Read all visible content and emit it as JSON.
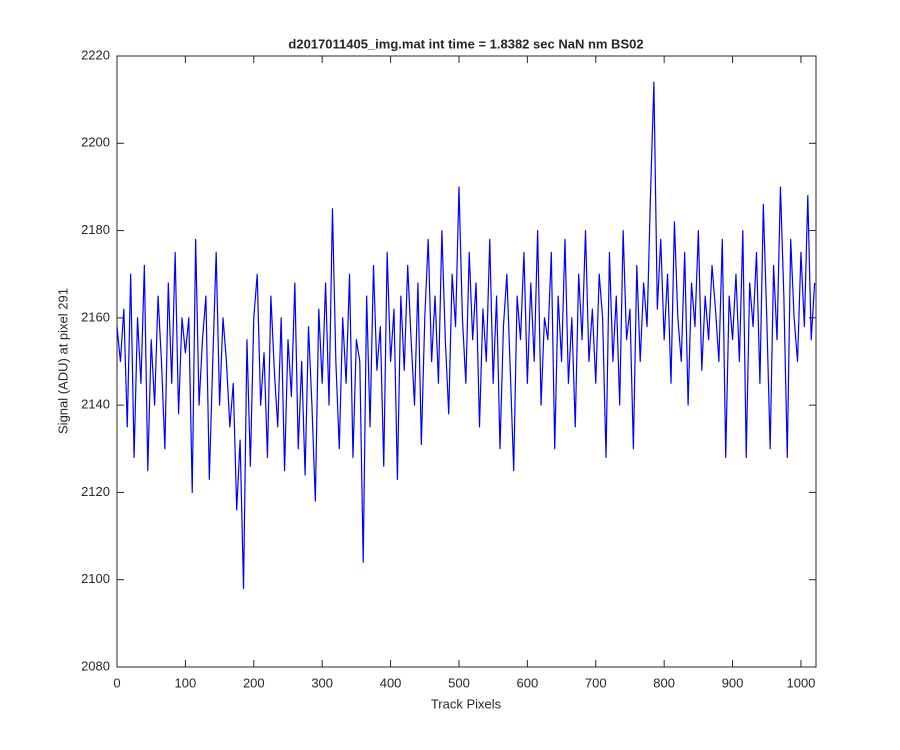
{
  "chart_data": {
    "type": "line",
    "title": "d2017011405_img.mat int time = 1.8382 sec  NaN nm BS02",
    "xlabel": "Track Pixels",
    "ylabel": "Signal (ADU) at pixel 291",
    "x": [
      0,
      5,
      10,
      15,
      20,
      25,
      30,
      35,
      40,
      45,
      50,
      55,
      60,
      65,
      70,
      75,
      80,
      85,
      90,
      95,
      100,
      105,
      110,
      115,
      120,
      125,
      130,
      135,
      140,
      145,
      150,
      155,
      160,
      165,
      170,
      175,
      180,
      185,
      190,
      195,
      200,
      205,
      210,
      215,
      220,
      225,
      230,
      235,
      240,
      245,
      250,
      255,
      260,
      265,
      270,
      275,
      280,
      285,
      290,
      295,
      300,
      305,
      310,
      315,
      320,
      325,
      330,
      335,
      340,
      345,
      350,
      355,
      360,
      365,
      370,
      375,
      380,
      385,
      390,
      395,
      400,
      405,
      410,
      415,
      420,
      425,
      430,
      435,
      440,
      445,
      450,
      455,
      460,
      465,
      470,
      475,
      480,
      485,
      490,
      495,
      500,
      505,
      510,
      515,
      520,
      525,
      530,
      535,
      540,
      545,
      550,
      555,
      560,
      565,
      570,
      575,
      580,
      585,
      590,
      595,
      600,
      605,
      610,
      615,
      620,
      625,
      630,
      635,
      640,
      645,
      650,
      655,
      660,
      665,
      670,
      675,
      680,
      685,
      690,
      695,
      700,
      705,
      710,
      715,
      720,
      725,
      730,
      735,
      740,
      745,
      750,
      755,
      760,
      765,
      770,
      775,
      780,
      785,
      790,
      795,
      800,
      805,
      810,
      815,
      820,
      825,
      830,
      835,
      840,
      845,
      850,
      855,
      860,
      865,
      870,
      875,
      880,
      885,
      890,
      895,
      900,
      905,
      910,
      915,
      920,
      925,
      930,
      935,
      940,
      945,
      950,
      955,
      960,
      965,
      970,
      975,
      980,
      985,
      990,
      995,
      1000,
      1005,
      1010,
      1015,
      1020
    ],
    "series": [
      {
        "name": "signal",
        "color": "#0000ff",
        "values": [
          2158,
          2150,
          2162,
          2135,
          2170,
          2128,
          2160,
          2145,
          2172,
          2125,
          2155,
          2140,
          2165,
          2150,
          2130,
          2168,
          2145,
          2175,
          2138,
          2160,
          2152,
          2160,
          2120,
          2178,
          2140,
          2155,
          2165,
          2123,
          2150,
          2175,
          2140,
          2160,
          2150,
          2135,
          2145,
          2116,
          2132,
          2098,
          2155,
          2126,
          2160,
          2170,
          2140,
          2152,
          2128,
          2165,
          2148,
          2135,
          2160,
          2125,
          2155,
          2142,
          2168,
          2130,
          2150,
          2124,
          2158,
          2140,
          2118,
          2162,
          2145,
          2168,
          2140,
          2185,
          2150,
          2130,
          2160,
          2145,
          2170,
          2128,
          2155,
          2150,
          2104,
          2165,
          2135,
          2172,
          2148,
          2158,
          2126,
          2175,
          2150,
          2162,
          2123,
          2165,
          2148,
          2172,
          2155,
          2140,
          2168,
          2131,
          2160,
          2178,
          2150,
          2165,
          2145,
          2180,
          2155,
          2138,
          2170,
          2158,
          2190,
          2160,
          2145,
          2175,
          2155,
          2168,
          2135,
          2162,
          2150,
          2178,
          2145,
          2165,
          2130,
          2158,
          2170,
          2148,
          2125,
          2165,
          2155,
          2175,
          2145,
          2168,
          2150,
          2180,
          2140,
          2160,
          2155,
          2175,
          2130,
          2165,
          2150,
          2178,
          2145,
          2160,
          2135,
          2170,
          2155,
          2180,
          2150,
          2162,
          2145,
          2170,
          2160,
          2128,
          2175,
          2150,
          2165,
          2140,
          2180,
          2155,
          2162,
          2130,
          2172,
          2150,
          2168,
          2158,
          2188,
          2214,
          2162,
          2178,
          2155,
          2170,
          2145,
          2182,
          2160,
          2150,
          2175,
          2140,
          2168,
          2158,
          2180,
          2148,
          2165,
          2155,
          2172,
          2162,
          2150,
          2178,
          2128,
          2165,
          2155,
          2170,
          2150,
          2180,
          2128,
          2168,
          2158,
          2175,
          2145,
          2186,
          2160,
          2130,
          2172,
          2155,
          2190,
          2165,
          2128,
          2178,
          2160,
          2150,
          2175,
          2158,
          2188,
          2155,
          2168
        ]
      }
    ],
    "xlim": [
      0,
      1022
    ],
    "ylim": [
      2080,
      2220
    ],
    "xticks": [
      0,
      100,
      200,
      300,
      400,
      500,
      600,
      700,
      800,
      900,
      1000
    ],
    "yticks": [
      2080,
      2100,
      2120,
      2140,
      2160,
      2180,
      2200,
      2220
    ]
  }
}
